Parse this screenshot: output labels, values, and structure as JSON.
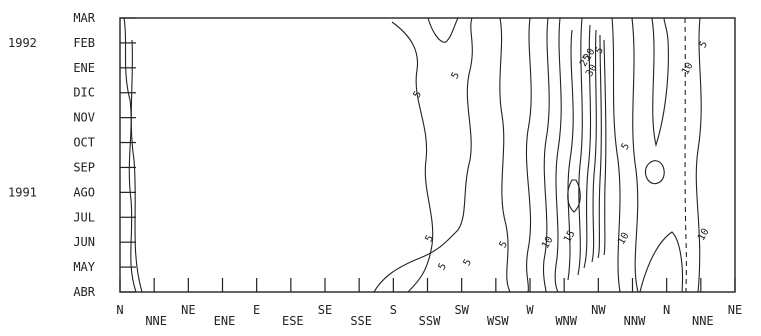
{
  "chart_data": {
    "type": "contour",
    "title": "",
    "xlabel": "",
    "ylabel": "",
    "x_categories": [
      "N",
      "NNE",
      "NE",
      "ENE",
      "E",
      "ESE",
      "SE",
      "SSE",
      "S",
      "SSW",
      "SW",
      "WSW",
      "W",
      "WNW",
      "NW",
      "NNW",
      "N",
      "NNE",
      "NE"
    ],
    "y_categories": [
      "ABR",
      "MAY",
      "JUN",
      "JUL",
      "AGO",
      "SEP",
      "OCT",
      "NOV",
      "DIC",
      "ENE",
      "FEB",
      "MAR"
    ],
    "year_labels": [
      {
        "year": "1991",
        "month": "AGO"
      },
      {
        "year": "1992",
        "month": "FEB"
      }
    ],
    "contour_levels": [
      5,
      10,
      15,
      20,
      25,
      30
    ],
    "contour_labels": [
      "5",
      "5",
      "5",
      "5",
      "5",
      "5",
      "5",
      "5",
      "5",
      "10",
      "10",
      "10",
      "10",
      "15",
      "20",
      "25",
      "30"
    ]
  }
}
